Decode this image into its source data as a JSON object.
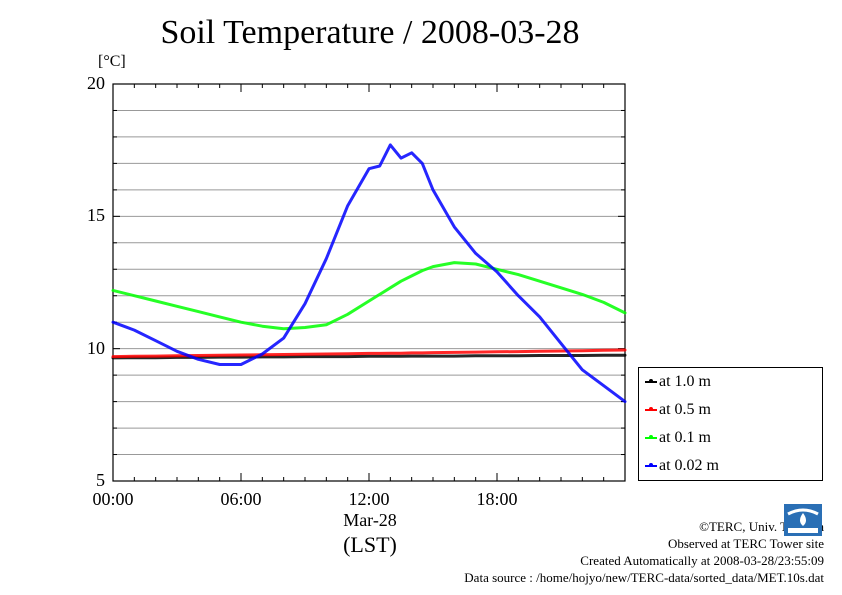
{
  "title": "Soil Temperature / 2008-03-28",
  "unit_label": "[°C]",
  "x_date_label": "Mar-28",
  "x_axis_label": "(LST)",
  "credits": [
    "©TERC, Univ. Tsukuba",
    "Observed at TERC Tower site",
    "Created Automatically at 2008-03-28/23:55:09",
    "Data source : /home/hojyo/new/TERC-data/sorted_data/MET.10s.dat"
  ],
  "logo_icon": "terc-logo-icon",
  "chart_data": {
    "type": "line",
    "title": "Soil Temperature / 2008-03-28",
    "xlabel": "(LST)",
    "ylabel": "[°C]",
    "x_unit": "hour",
    "xlim": [
      0,
      24
    ],
    "ylim": [
      5,
      20
    ],
    "grid": true,
    "legend_position": "right",
    "y_ticks": [
      {
        "value": 5,
        "label": "5"
      },
      {
        "value": 10,
        "label": "10"
      },
      {
        "value": 15,
        "label": "15"
      },
      {
        "value": 20,
        "label": "20"
      }
    ],
    "x_ticks": [
      {
        "value": 0,
        "label": "00:00"
      },
      {
        "value": 6,
        "label": "06:00"
      },
      {
        "value": 12,
        "label": "12:00"
      },
      {
        "value": 18,
        "label": "18:00"
      }
    ],
    "x": [
      0,
      1,
      2,
      3,
      4,
      5,
      6,
      7,
      8,
      9,
      10,
      11,
      12,
      12.5,
      13,
      13.5,
      14,
      14.5,
      15,
      16,
      17,
      18,
      19,
      20,
      21,
      22,
      23,
      24
    ],
    "series": [
      {
        "name": "at 1.0 m",
        "color": "#000000",
        "values": [
          9.65,
          9.66,
          9.66,
          9.67,
          9.67,
          9.68,
          9.68,
          9.69,
          9.69,
          9.7,
          9.7,
          9.7,
          9.71,
          9.71,
          9.71,
          9.71,
          9.72,
          9.72,
          9.72,
          9.72,
          9.73,
          9.73,
          9.73,
          9.74,
          9.74,
          9.74,
          9.75,
          9.75
        ]
      },
      {
        "name": "at 0.5 m",
        "color": "#ff0000",
        "values": [
          9.7,
          9.71,
          9.72,
          9.73,
          9.74,
          9.75,
          9.76,
          9.77,
          9.78,
          9.79,
          9.8,
          9.81,
          9.82,
          9.82,
          9.83,
          9.83,
          9.84,
          9.84,
          9.85,
          9.86,
          9.87,
          9.88,
          9.89,
          9.9,
          9.91,
          9.92,
          9.94,
          9.95
        ]
      },
      {
        "name": "at 0.1 m",
        "color": "#00ff00",
        "values": [
          12.2,
          12.0,
          11.8,
          11.6,
          11.4,
          11.2,
          11.0,
          10.85,
          10.75,
          10.8,
          10.9,
          11.3,
          11.8,
          12.05,
          12.3,
          12.55,
          12.75,
          12.95,
          13.1,
          13.25,
          13.2,
          13.0,
          12.8,
          12.55,
          12.3,
          12.05,
          11.75,
          11.35
        ]
      },
      {
        "name": "at 0.02 m",
        "color": "#0000ff",
        "values": [
          11.0,
          10.7,
          10.3,
          9.9,
          9.6,
          9.4,
          9.4,
          9.8,
          10.4,
          11.7,
          13.4,
          15.4,
          16.8,
          16.9,
          17.7,
          17.2,
          17.4,
          17.0,
          16.0,
          14.6,
          13.6,
          12.9,
          12.0,
          11.2,
          10.2,
          9.2,
          8.6,
          8.0
        ]
      }
    ]
  }
}
